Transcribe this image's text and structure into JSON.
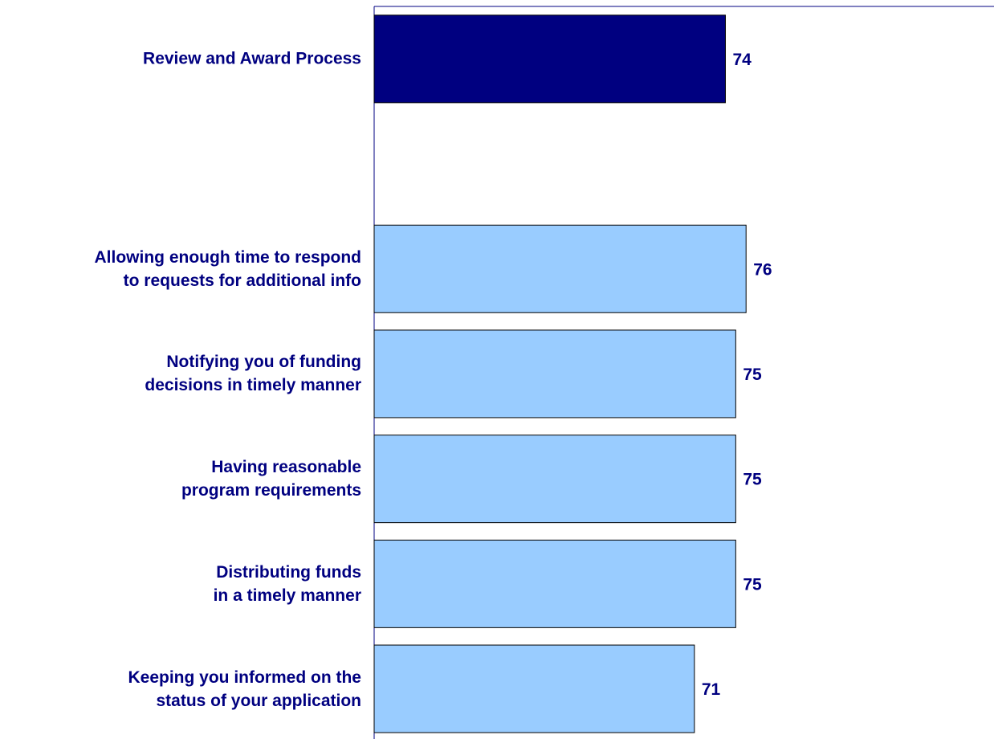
{
  "chart_data": {
    "type": "barh",
    "categories": [
      "Review and Award Process",
      null,
      "Allowing enough time to respond\nto requests for additional info",
      "Notifying you of funding\ndecisions in timely manner",
      "Having reasonable\nprogram requirements",
      "Distributing funds\nin a timely manner",
      "Keeping you informed on the\nstatus of your application"
    ],
    "values": [
      74,
      null,
      76,
      75,
      75,
      75,
      71
    ],
    "colors": [
      "#000080",
      null,
      "#99ccff",
      "#99ccff",
      "#99ccff",
      "#99ccff",
      "#99ccff"
    ],
    "xlim": [
      40,
      100
    ]
  }
}
